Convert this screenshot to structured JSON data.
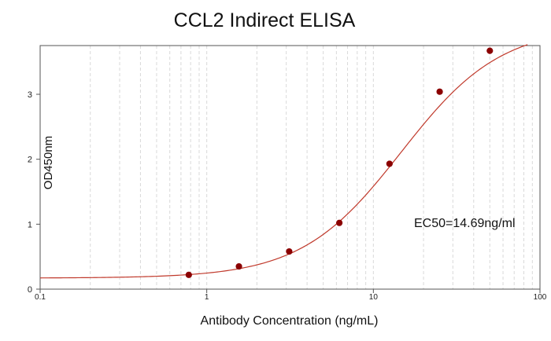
{
  "chart_data": {
    "type": "scatter",
    "title": "CCL2 Indirect ELISA",
    "xlabel": "Antibody Concentration (ng/mL)",
    "ylabel": "OD450nm",
    "xscale": "log",
    "xlim": [
      0.1,
      100
    ],
    "ylim": [
      0,
      3.75
    ],
    "x_ticks": [
      0.1,
      1,
      10,
      100
    ],
    "x_tick_labels": [
      "0.1",
      "1",
      "10",
      "100"
    ],
    "y_ticks": [
      0,
      1,
      2,
      3
    ],
    "y_tick_labels": [
      "0",
      "1",
      "2",
      "3"
    ],
    "grid": "vertical log minor gridlines (dashed)",
    "annotation": "EC50=14.69ng/ml",
    "colors": {
      "curve": "#c0392b",
      "points": "#8b0000",
      "grid": "#d9d9d9",
      "axis": "#555555"
    },
    "series": [
      {
        "x": [
          0.78,
          1.56,
          3.125,
          6.25,
          12.5,
          25,
          50
        ],
        "y": [
          0.22,
          0.35,
          0.58,
          1.02,
          1.93,
          3.04,
          3.67
        ]
      }
    ],
    "fit_curve": {
      "model": "4PL",
      "bottom": 0.17,
      "top": 4.05,
      "ec50": 14.69,
      "hill": 1.45
    }
  }
}
